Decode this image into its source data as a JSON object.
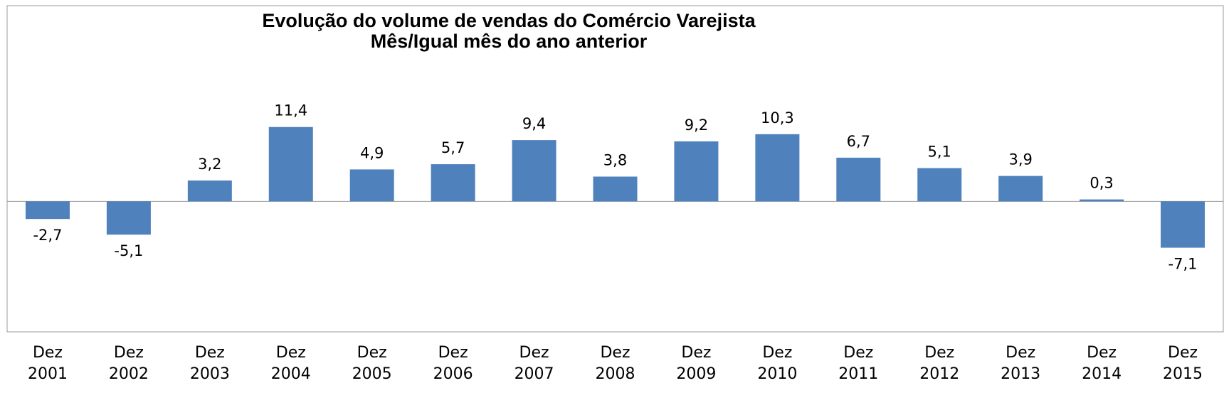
{
  "chart_data": {
    "type": "bar",
    "title": "Evolução do volume de vendas do Comércio Varejista",
    "subtitle": "Mês/Igual mês do ano anterior",
    "categories": [
      "Dez 2001",
      "Dez 2002",
      "Dez 2003",
      "Dez 2004",
      "Dez 2005",
      "Dez 2006",
      "Dez 2007",
      "Dez 2008",
      "Dez 2009",
      "Dez 2010",
      "Dez 2011",
      "Dez 2012",
      "Dez 2013",
      "Dez 2014",
      "Dez 2015"
    ],
    "values": [
      -2.7,
      -5.1,
      3.2,
      11.4,
      4.9,
      5.7,
      9.4,
      3.8,
      9.2,
      10.3,
      6.7,
      5.1,
      3.9,
      0.3,
      -7.1
    ],
    "value_labels": [
      "-2,7",
      "-5,1",
      "3,2",
      "11,4",
      "4,9",
      "5,7",
      "9,4",
      "3,8",
      "9,2",
      "10,3",
      "6,7",
      "5,1",
      "3,9",
      "0,3",
      "-7,1"
    ],
    "color": "#4f81bd",
    "ylim": [
      -20,
      30
    ]
  }
}
